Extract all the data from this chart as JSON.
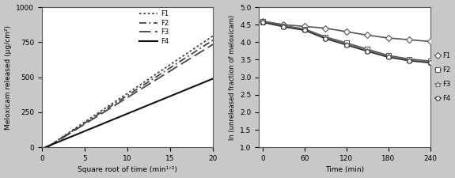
{
  "left": {
    "xlabel": "Square root of time (min¹ᐟ²)",
    "ylabel": "Meloxicam released (µg/cm²)",
    "xlim": [
      0,
      20
    ],
    "ylim": [
      0,
      1000
    ],
    "xticks": [
      0,
      5,
      10,
      15,
      20
    ],
    "yticks": [
      0,
      250,
      500,
      750,
      1000
    ],
    "lines": [
      {
        "label": "F1",
        "slope": 41.0,
        "intercept": -25,
        "linestyle": "dotted",
        "color": "#444444",
        "linewidth": 1.3
      },
      {
        "label": "F2",
        "slope": 39.5,
        "intercept": -25,
        "linestyle": "dashdot2",
        "color": "#444444",
        "linewidth": 1.3
      },
      {
        "label": "F3",
        "slope": 38.0,
        "intercept": -25,
        "linestyle": "longdash",
        "color": "#444444",
        "linewidth": 1.3
      },
      {
        "label": "F4",
        "slope": 25.0,
        "intercept": -10,
        "linestyle": "solid",
        "color": "#111111",
        "linewidth": 1.5
      }
    ]
  },
  "right": {
    "xlabel": "Time (min)",
    "ylabel": "ln (unreleased fraction of meloxicam)",
    "xlim": [
      -5,
      240
    ],
    "ylim": [
      1.0,
      5.0
    ],
    "xticks": [
      0,
      60,
      120,
      180,
      240
    ],
    "yticks": [
      1.0,
      1.5,
      2.0,
      2.5,
      3.0,
      3.5,
      4.0,
      4.5,
      5.0
    ],
    "series": [
      {
        "label": "F1",
        "x": [
          0,
          30,
          60,
          90,
          120,
          150,
          180,
          210,
          240
        ],
        "y": [
          4.6,
          4.5,
          4.45,
          4.4,
          4.3,
          4.2,
          4.12,
          4.07,
          4.02
        ],
        "marker": "D",
        "markersize": 4,
        "color": "#555555",
        "linewidth": 1.2,
        "linestyle": "solid",
        "markerfacecolor": "white",
        "zorder": 3
      },
      {
        "label": "F2",
        "x": [
          0,
          30,
          60,
          90,
          120,
          150,
          180,
          210,
          240
        ],
        "y": [
          4.6,
          4.47,
          4.38,
          4.15,
          3.98,
          3.8,
          3.62,
          3.52,
          3.46
        ],
        "marker": "s",
        "markersize": 4,
        "color": "#555555",
        "linewidth": 1.2,
        "linestyle": "solid",
        "markerfacecolor": "white",
        "zorder": 3
      },
      {
        "label": "F3",
        "x": [
          0,
          30,
          60,
          90,
          120,
          150,
          180,
          210,
          240
        ],
        "y": [
          4.58,
          4.45,
          4.36,
          4.12,
          3.95,
          3.77,
          3.59,
          3.49,
          3.43
        ],
        "marker": "^",
        "markersize": 4,
        "color": "#777777",
        "linewidth": 1.2,
        "linestyle": "solid",
        "markerfacecolor": "white",
        "zorder": 3
      },
      {
        "label": "F4",
        "x": [
          0,
          30,
          60,
          90,
          120,
          150,
          180,
          210,
          240
        ],
        "y": [
          4.57,
          4.44,
          4.34,
          4.1,
          3.92,
          3.74,
          3.57,
          3.47,
          3.41
        ],
        "marker": "o",
        "markersize": 4,
        "color": "#333333",
        "linewidth": 1.2,
        "linestyle": "solid",
        "markerfacecolor": "white",
        "zorder": 3
      }
    ]
  },
  "fig_bg": "#c8c8c8",
  "plot_bg": "#ffffff"
}
